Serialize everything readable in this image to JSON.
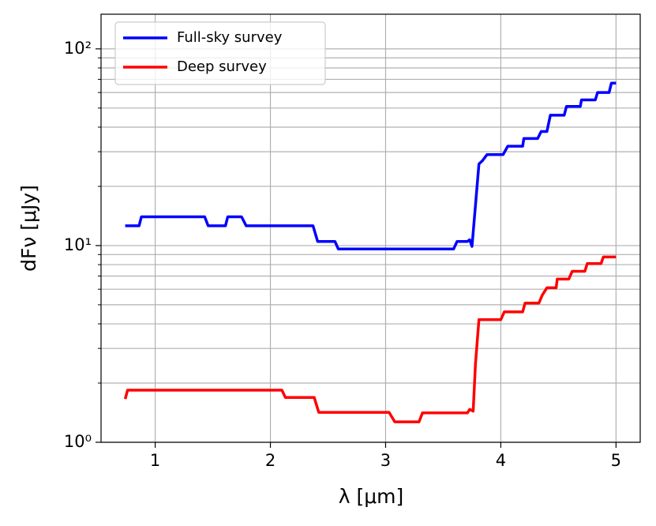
{
  "chart_data": {
    "type": "line",
    "xlabel": "λ [μm]",
    "ylabel": "dFν [μJy]",
    "xlim": [
      0.53,
      5.21
    ],
    "xticks": [
      1,
      2,
      3,
      4,
      5
    ],
    "ylim": [
      1,
      150
    ],
    "ylog": true,
    "yticks": [
      {
        "value": 1,
        "label": "10⁰"
      },
      {
        "value": 10,
        "label": "10¹"
      },
      {
        "value": 100,
        "label": "10²"
      }
    ],
    "yminorticks": [
      2,
      3,
      4,
      5,
      6,
      7,
      8,
      9,
      20,
      30,
      40,
      50,
      60,
      70,
      80,
      90
    ],
    "grid": true,
    "legend": "upper left",
    "series": [
      {
        "name": "Full-sky survey",
        "color": "#0000ff",
        "x": [
          0.74,
          0.86,
          0.88,
          1.43,
          1.46,
          1.61,
          1.63,
          1.75,
          1.79,
          2.37,
          2.41,
          2.56,
          2.59,
          3.59,
          3.62,
          3.71,
          3.73,
          3.75,
          3.78,
          3.81,
          3.84,
          3.88,
          4.02,
          4.06,
          4.19,
          4.2,
          4.32,
          4.35,
          4.4,
          4.43,
          4.55,
          4.57,
          4.69,
          4.7,
          4.82,
          4.84,
          4.94,
          4.96,
          5.0
        ],
        "values": [
          12.6,
          12.6,
          14.0,
          14.0,
          12.6,
          12.6,
          14.0,
          14.0,
          12.6,
          12.6,
          10.5,
          10.5,
          9.6,
          9.6,
          10.5,
          10.5,
          10.7,
          9.9,
          16,
          26,
          27,
          29,
          29,
          32,
          32,
          35,
          35,
          38,
          38,
          46,
          46,
          51,
          51,
          55,
          55,
          60,
          60,
          67,
          67
        ]
      },
      {
        "name": "Deep survey",
        "color": "#ff0000",
        "x": [
          0.74,
          0.76,
          2.1,
          2.13,
          2.38,
          2.42,
          3.03,
          3.08,
          3.29,
          3.32,
          3.71,
          3.73,
          3.76,
          3.78,
          3.81,
          4.0,
          4.03,
          4.19,
          4.21,
          4.33,
          4.36,
          4.4,
          4.48,
          4.49,
          4.59,
          4.62,
          4.73,
          4.75,
          4.87,
          4.89,
          5.0
        ],
        "values": [
          1.66,
          1.84,
          1.84,
          1.69,
          1.69,
          1.42,
          1.42,
          1.27,
          1.27,
          1.41,
          1.41,
          1.47,
          1.44,
          2.5,
          4.2,
          4.2,
          4.6,
          4.6,
          5.1,
          5.1,
          5.6,
          6.1,
          6.1,
          6.75,
          6.75,
          7.4,
          7.4,
          8.1,
          8.1,
          8.75,
          8.75
        ]
      }
    ]
  }
}
